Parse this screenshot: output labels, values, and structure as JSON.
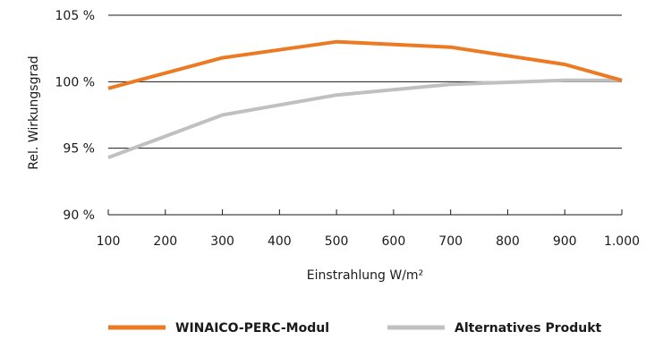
{
  "chart_data": {
    "type": "line",
    "title": "",
    "xlabel": "Einstrahlung W/m²",
    "ylabel": "Rel. Wirkungsgrad",
    "x": [
      100,
      200,
      300,
      400,
      500,
      600,
      700,
      800,
      900,
      1000
    ],
    "x_tick_labels": [
      "100",
      "200",
      "300",
      "400",
      "500",
      "600",
      "700",
      "800",
      "900",
      "1.000"
    ],
    "y_ticks": [
      90,
      95,
      100,
      105
    ],
    "y_tick_labels": [
      "90 %",
      "95 %",
      "100 %",
      "105 %"
    ],
    "xlim": [
      100,
      1000
    ],
    "ylim": [
      90,
      105
    ],
    "grid": "horizontal",
    "legend_position": "bottom",
    "series": [
      {
        "name": "WINAICO-PERC-Modul",
        "color": "#ec7a23",
        "x": [
          100,
          300,
          500,
          700,
          900,
          1000
        ],
        "values": [
          99.5,
          101.8,
          103.0,
          102.6,
          101.3,
          100.1
        ]
      },
      {
        "name": "Alternatives Produkt",
        "color": "#c0c0c0",
        "x": [
          100,
          300,
          500,
          700,
          900,
          1000
        ],
        "values": [
          94.3,
          97.5,
          99.0,
          99.8,
          100.1,
          100.1
        ]
      }
    ]
  }
}
